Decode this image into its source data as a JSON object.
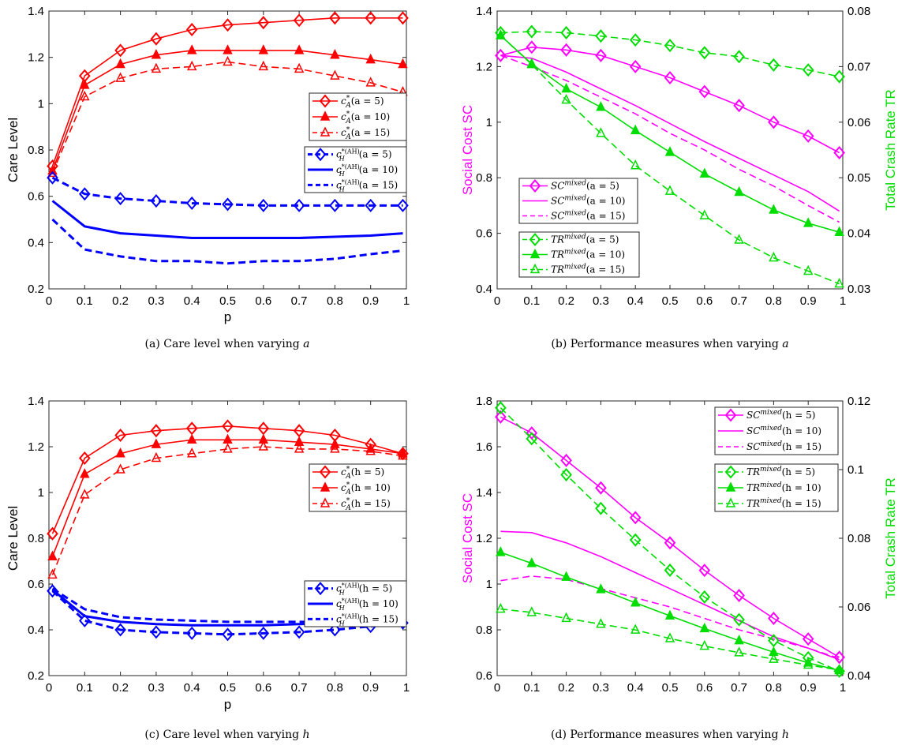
{
  "chart_data": [
    {
      "type": "line",
      "caption": "(a) Care level when varying a",
      "xlabel": "p",
      "ylabel": "Care Level",
      "xlim": [
        0,
        1
      ],
      "ylim": [
        0.2,
        1.4
      ],
      "xticks": [
        0,
        0.1,
        0.2,
        0.3,
        0.4,
        0.5,
        0.6,
        0.7,
        0.8,
        0.9,
        1
      ],
      "xtick_labels": [
        "0",
        "0.1",
        "0.2",
        "0.3",
        "0.4",
        "0.5",
        "0.6",
        "0.7",
        "0.8",
        "0.9",
        "1"
      ],
      "yticks": [
        0.2,
        0.4,
        0.6,
        0.8,
        1.0,
        1.2,
        1.4
      ],
      "ytick_labels": [
        "0.2",
        "0.4",
        "0.6",
        "0.8",
        "1",
        "1.2",
        "1.4"
      ],
      "x": [
        0.01,
        0.1,
        0.2,
        0.3,
        0.4,
        0.5,
        0.6,
        0.7,
        0.8,
        0.9,
        0.99
      ],
      "series": [
        {
          "name": "c*A(a = 5)",
          "color": "#ff0000",
          "dash": "solid",
          "marker": "diamond",
          "values": [
            0.73,
            1.12,
            1.23,
            1.28,
            1.32,
            1.34,
            1.35,
            1.36,
            1.37,
            1.37,
            1.37
          ]
        },
        {
          "name": "c*A(a = 10)",
          "color": "#ff0000",
          "dash": "solid",
          "marker": "triangle-filled",
          "values": [
            0.71,
            1.08,
            1.17,
            1.21,
            1.23,
            1.23,
            1.23,
            1.23,
            1.21,
            1.19,
            1.17
          ]
        },
        {
          "name": "c*A(a = 15)",
          "color": "#ff0000",
          "dash": "dashed",
          "marker": "triangle",
          "values": [
            0.7,
            1.03,
            1.11,
            1.15,
            1.16,
            1.18,
            1.16,
            1.15,
            1.12,
            1.09,
            1.05
          ]
        },
        {
          "name": "c*(AH)H(a = 5)",
          "color": "#0000ff",
          "dash": "dashed",
          "marker": "diamond",
          "values": [
            0.68,
            0.61,
            0.59,
            0.58,
            0.57,
            0.565,
            0.56,
            0.56,
            0.56,
            0.56,
            0.56
          ]
        },
        {
          "name": "c*(AH)H(a = 10)",
          "color": "#0000ff",
          "dash": "solid",
          "marker": "none",
          "values": [
            0.58,
            0.47,
            0.44,
            0.43,
            0.42,
            0.42,
            0.42,
            0.42,
            0.425,
            0.43,
            0.44
          ]
        },
        {
          "name": "c*(AH)H(a = 15)",
          "color": "#0000ff",
          "dash": "dashed",
          "marker": "none",
          "values": [
            0.5,
            0.37,
            0.34,
            0.32,
            0.32,
            0.31,
            0.32,
            0.32,
            0.33,
            0.35,
            0.365
          ]
        }
      ],
      "legends": [
        {
          "entries": [
            "c*A(a = 5)",
            "c*A(a = 10)",
            "c*A(a = 15)"
          ]
        },
        {
          "entries": [
            "c*(AH)H(a = 5)",
            "c*(AH)H(a = 10)",
            "c*(AH)H(a = 15)"
          ]
        }
      ]
    },
    {
      "type": "line",
      "caption": "(b) Performance measures when varying a",
      "xlabel": "",
      "ylabel": "Social Cost SC",
      "ylabel_right": "Total Crash Rate TR",
      "xlim": [
        0,
        1
      ],
      "ylim": [
        0.4,
        1.4
      ],
      "ylim_right": [
        0.03,
        0.08
      ],
      "xticks": [
        0,
        0.1,
        0.2,
        0.3,
        0.4,
        0.5,
        0.6,
        0.7,
        0.8,
        0.9,
        1
      ],
      "xtick_labels": [
        "0",
        "0.1",
        "0.2",
        "0.3",
        "0.4",
        "0.5",
        "0.6",
        "0.7",
        "0.8",
        "0.9",
        "1"
      ],
      "yticks": [
        0.4,
        0.6,
        0.8,
        1.0,
        1.2,
        1.4
      ],
      "ytick_labels": [
        "0.4",
        "0.6",
        "0.8",
        "1",
        "1.2",
        "1.4"
      ],
      "yticks_right": [
        0.03,
        0.04,
        0.05,
        0.06,
        0.07,
        0.08
      ],
      "ytick_labels_right": [
        "0.03",
        "0.04",
        "0.05",
        "0.06",
        "0.07",
        "0.08"
      ],
      "x": [
        0.01,
        0.1,
        0.2,
        0.3,
        0.4,
        0.5,
        0.6,
        0.7,
        0.8,
        0.9,
        0.99
      ],
      "series": [
        {
          "name": "SCmixed(a = 5)",
          "axis": "left",
          "color": "#ff00ff",
          "dash": "solid",
          "marker": "diamond",
          "values": [
            1.24,
            1.27,
            1.26,
            1.24,
            1.2,
            1.16,
            1.11,
            1.06,
            1.0,
            0.95,
            0.89
          ]
        },
        {
          "name": "SCmixed(a = 10)",
          "axis": "left",
          "color": "#ff00ff",
          "dash": "solid",
          "marker": "none",
          "values": [
            1.24,
            1.23,
            1.18,
            1.12,
            1.06,
            0.995,
            0.93,
            0.87,
            0.81,
            0.75,
            0.68
          ]
        },
        {
          "name": "SCmixed(a = 15)",
          "axis": "left",
          "color": "#ff00ff",
          "dash": "dashed",
          "marker": "none",
          "values": [
            1.24,
            1.2,
            1.15,
            1.09,
            1.03,
            0.96,
            0.9,
            0.83,
            0.77,
            0.7,
            0.64
          ]
        },
        {
          "name": "TRmixed(a = 5)",
          "axis": "right",
          "color": "#00dd00",
          "dash": "dashed",
          "marker": "diamond",
          "values": [
            0.0761,
            0.0763,
            0.0761,
            0.0755,
            0.0748,
            0.0738,
            0.0725,
            0.0718,
            0.0703,
            0.0694,
            0.0682
          ]
        },
        {
          "name": "TRmixed(a = 10)",
          "axis": "right",
          "color": "#00dd00",
          "dash": "solid",
          "marker": "triangle-filled",
          "values": [
            0.0756,
            0.0705,
            0.066,
            0.0627,
            0.0585,
            0.0546,
            0.0507,
            0.0474,
            0.0442,
            0.0418,
            0.0402
          ]
        },
        {
          "name": "TRmixed(a = 15)",
          "axis": "right",
          "color": "#00dd00",
          "dash": "dashed",
          "marker": "triangle",
          "values": [
            0.0756,
            0.0704,
            0.064,
            0.058,
            0.0522,
            0.0476,
            0.0432,
            0.0388,
            0.0356,
            0.0332,
            0.0309
          ]
        }
      ],
      "legends": [
        {
          "entries": [
            "SCmixed(a = 5)",
            "SCmixed(a = 10)",
            "SCmixed(a = 15)"
          ]
        },
        {
          "entries": [
            "TRmixed(a = 5)",
            "TRmixed(a = 10)",
            "TRmixed(a = 15)"
          ]
        }
      ]
    },
    {
      "type": "line",
      "caption": "(c) Care level when varying h",
      "xlabel": "p",
      "ylabel": "Care Level",
      "xlim": [
        0,
        1
      ],
      "ylim": [
        0.2,
        1.4
      ],
      "xticks": [
        0,
        0.1,
        0.2,
        0.3,
        0.4,
        0.5,
        0.6,
        0.7,
        0.8,
        0.9,
        1
      ],
      "xtick_labels": [
        "0",
        "0.1",
        "0.2",
        "0.3",
        "0.4",
        "0.5",
        "0.6",
        "0.7",
        "0.8",
        "0.9",
        "1"
      ],
      "yticks": [
        0.2,
        0.4,
        0.6,
        0.8,
        1.0,
        1.2,
        1.4
      ],
      "ytick_labels": [
        "0.2",
        "0.4",
        "0.6",
        "0.8",
        "1",
        "1.2",
        "1.4"
      ],
      "x": [
        0.01,
        0.1,
        0.2,
        0.3,
        0.4,
        0.5,
        0.6,
        0.7,
        0.8,
        0.9,
        0.99
      ],
      "series": [
        {
          "name": "c*A(h = 5)",
          "color": "#ff0000",
          "dash": "solid",
          "marker": "diamond",
          "values": [
            0.82,
            1.15,
            1.25,
            1.27,
            1.28,
            1.29,
            1.28,
            1.27,
            1.25,
            1.21,
            1.17
          ]
        },
        {
          "name": "c*A(h = 10)",
          "color": "#ff0000",
          "dash": "solid",
          "marker": "triangle-filled",
          "values": [
            0.72,
            1.08,
            1.17,
            1.21,
            1.23,
            1.23,
            1.23,
            1.22,
            1.21,
            1.19,
            1.17
          ]
        },
        {
          "name": "c*A(h = 15)",
          "color": "#ff0000",
          "dash": "dashed",
          "marker": "triangle",
          "values": [
            0.64,
            0.99,
            1.1,
            1.15,
            1.17,
            1.19,
            1.2,
            1.19,
            1.19,
            1.18,
            1.16
          ]
        },
        {
          "name": "c*(AH)H(h = 5)",
          "color": "#0000ff",
          "dash": "dashed",
          "marker": "diamond",
          "values": [
            0.57,
            0.44,
            0.4,
            0.39,
            0.385,
            0.38,
            0.385,
            0.39,
            0.4,
            0.415,
            0.43
          ]
        },
        {
          "name": "c*(AH)H(h = 10)",
          "color": "#0000ff",
          "dash": "solid",
          "marker": "none",
          "values": [
            0.575,
            0.46,
            0.435,
            0.425,
            0.42,
            0.42,
            0.42,
            0.425,
            0.43,
            0.435,
            0.44
          ]
        },
        {
          "name": "c*(AH)H(h = 15)",
          "color": "#0000ff",
          "dash": "dashed",
          "marker": "none",
          "values": [
            0.58,
            0.49,
            0.455,
            0.445,
            0.44,
            0.435,
            0.435,
            0.435,
            0.435,
            0.435,
            0.44
          ]
        }
      ],
      "legends": [
        {
          "entries": [
            "c*A(h = 5)",
            "c*A(h = 10)",
            "c*A(h = 15)"
          ]
        },
        {
          "entries": [
            "c*(AH)H(h = 5)",
            "c*(AH)H(h = 10)",
            "c*(AH)H(h = 15)"
          ]
        }
      ]
    },
    {
      "type": "line",
      "caption": "(d) Performance measures when varying h",
      "xlabel": "",
      "ylabel": "Social Cost SC",
      "ylabel_right": "Total Crash Rate TR",
      "xlim": [
        0,
        1
      ],
      "ylim": [
        0.6,
        1.8
      ],
      "ylim_right": [
        0.04,
        0.12
      ],
      "xticks": [
        0,
        0.1,
        0.2,
        0.3,
        0.4,
        0.5,
        0.6,
        0.7,
        0.8,
        0.9,
        1
      ],
      "xtick_labels": [
        "0",
        "0.1",
        "0.2",
        "0.3",
        "0.4",
        "0.5",
        "0.6",
        "0.7",
        "0.8",
        "0.9",
        "1"
      ],
      "yticks": [
        0.6,
        0.8,
        1.0,
        1.2,
        1.4,
        1.6,
        1.8
      ],
      "ytick_labels": [
        "0.6",
        "0.8",
        "1",
        "1.2",
        "1.4",
        "1.6",
        "1.8"
      ],
      "yticks_right": [
        0.04,
        0.06,
        0.08,
        0.1,
        0.12
      ],
      "ytick_labels_right": [
        "0.04",
        "0.06",
        "0.08",
        "0.1",
        "0.12"
      ],
      "x": [
        0.01,
        0.1,
        0.2,
        0.3,
        0.4,
        0.5,
        0.6,
        0.7,
        0.8,
        0.9,
        0.99
      ],
      "series": [
        {
          "name": "SCmixed(h = 5)",
          "axis": "left",
          "color": "#ff00ff",
          "dash": "solid",
          "marker": "diamond",
          "values": [
            1.73,
            1.66,
            1.54,
            1.42,
            1.29,
            1.18,
            1.06,
            0.95,
            0.85,
            0.76,
            0.68
          ]
        },
        {
          "name": "SCmixed(h = 10)",
          "axis": "left",
          "color": "#ff00ff",
          "dash": "solid",
          "marker": "none",
          "values": [
            1.23,
            1.225,
            1.18,
            1.12,
            1.05,
            0.98,
            0.91,
            0.84,
            0.77,
            0.72,
            0.67
          ]
        },
        {
          "name": "SCmixed(h = 15)",
          "axis": "left",
          "color": "#ff00ff",
          "dash": "dashed",
          "marker": "none",
          "values": [
            1.015,
            1.035,
            1.02,
            0.98,
            0.94,
            0.9,
            0.85,
            0.8,
            0.76,
            0.72,
            0.675
          ]
        },
        {
          "name": "TRmixed(h = 5)",
          "axis": "right",
          "color": "#00dd00",
          "dash": "dashed",
          "marker": "diamond",
          "values": [
            0.118,
            0.109,
            0.0985,
            0.0887,
            0.0795,
            0.0707,
            0.0629,
            0.0563,
            0.0502,
            0.0452,
            0.0413
          ]
        },
        {
          "name": "TRmixed(h = 10)",
          "axis": "right",
          "color": "#00dd00",
          "dash": "solid",
          "marker": "triangle-filled",
          "values": [
            0.0759,
            0.0727,
            0.0687,
            0.0651,
            0.0612,
            0.0574,
            0.0537,
            0.0502,
            0.0468,
            0.0437,
            0.0415
          ]
        },
        {
          "name": "TRmixed(h = 15)",
          "axis": "right",
          "color": "#00dd00",
          "dash": "dashed",
          "marker": "triangle",
          "values": [
            0.0594,
            0.0584,
            0.0567,
            0.055,
            0.0533,
            0.0508,
            0.0486,
            0.0467,
            0.0448,
            0.0431,
            0.0416
          ]
        }
      ],
      "legends": [
        {
          "entries": [
            "SCmixed(h = 5)",
            "SCmixed(h = 10)",
            "SCmixed(h = 15)"
          ]
        },
        {
          "entries": [
            "TRmixed(h = 5)",
            "TRmixed(h = 10)",
            "TRmixed(h = 15)"
          ]
        }
      ]
    }
  ]
}
